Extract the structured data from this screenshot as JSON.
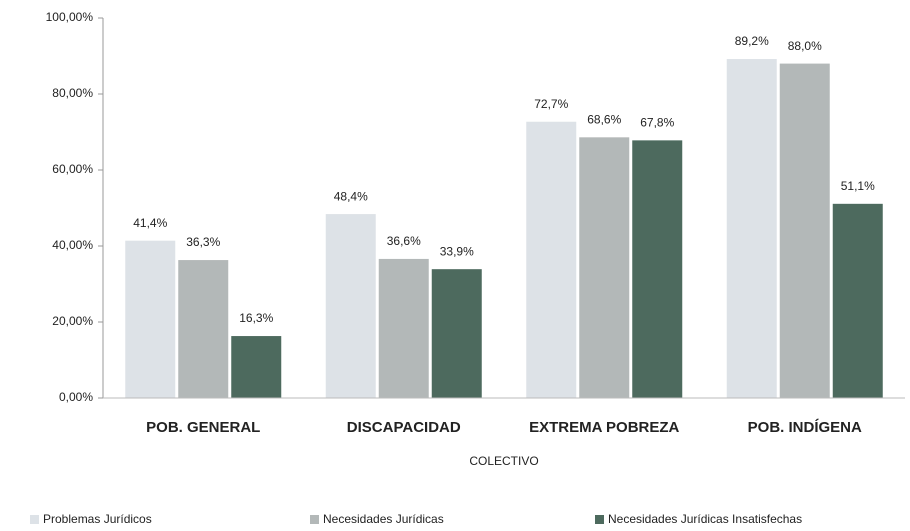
{
  "chart_data": {
    "type": "bar",
    "x_label": "COLECTIVO",
    "categories": [
      "POB. GENERAL",
      "DISCAPACIDAD",
      "EXTREMA POBREZA",
      "POB. INDÍGENA"
    ],
    "series": [
      {
        "name": "Problemas Jurídicos",
        "color": "#dde2e7",
        "values": [
          41.4,
          48.4,
          72.7,
          89.2
        ],
        "value_labels": [
          "41,4%",
          "48,4%",
          "72,7%",
          "89,2%"
        ]
      },
      {
        "name": "Necesidades Jurídicas",
        "color": "#b3b8b8",
        "values": [
          36.3,
          36.6,
          68.6,
          88.0
        ],
        "value_labels": [
          "36,3%",
          "36,6%",
          "68,6%",
          "88,0%"
        ]
      },
      {
        "name": "Necesidades Jurídicas Insatisfechas",
        "color": "#4d6a5e",
        "values": [
          16.3,
          33.9,
          67.8,
          51.1
        ],
        "value_labels": [
          "16,3%",
          "33,9%",
          "67,8%",
          "51,1%"
        ]
      }
    ],
    "ylim": [
      0,
      100
    ],
    "yticks": [
      {
        "value": 0,
        "label": "0,00%"
      },
      {
        "value": 20,
        "label": "20,00%"
      },
      {
        "value": 40,
        "label": "40,00%"
      },
      {
        "value": 60,
        "label": "60,00%"
      },
      {
        "value": 80,
        "label": "80,00%"
      },
      {
        "value": 100,
        "label": "100,00%"
      }
    ],
    "legend": "bottom"
  }
}
